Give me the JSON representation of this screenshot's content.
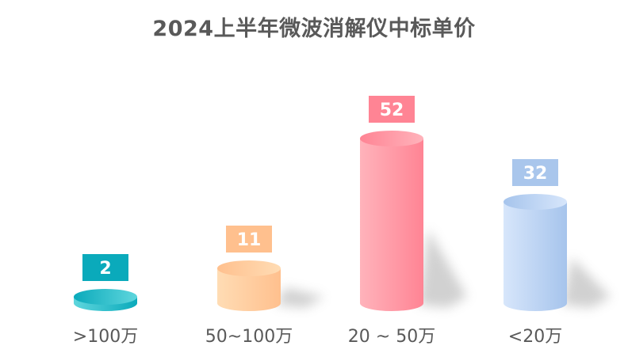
{
  "chart_data": {
    "type": "bar",
    "title": "2024上半年微波消解仪中标单价",
    "categories": [
      ">100万",
      "50~100万",
      "20 ~ 50万",
      "<20万"
    ],
    "values": [
      2,
      11,
      52,
      32
    ],
    "ylim": [
      0,
      52
    ],
    "grid": false,
    "legend": "none",
    "colors": [
      {
        "light": "#5fd6dd",
        "dark": "#0aaabb",
        "label": "#0aaabb"
      },
      {
        "light": "#ffdcb4",
        "dark": "#ffc08e",
        "label": "#ffc08e"
      },
      {
        "light": "#ffb3bb",
        "dark": "#ff8494",
        "label": "#ff8494"
      },
      {
        "light": "#d7e6fb",
        "dark": "#a6c4ec",
        "label": "#a9c6ec"
      }
    ]
  }
}
